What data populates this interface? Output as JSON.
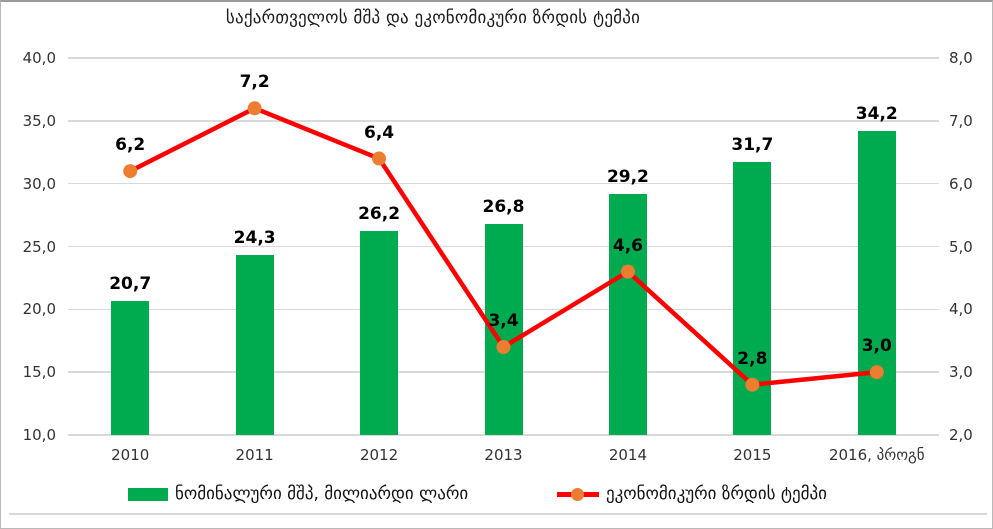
{
  "title": "საქართველოს მშპ და ეკონომიკური ზრდის ტემპი",
  "colors": {
    "bar": "#00AB50",
    "line": "#FF0000",
    "marker": "#ED7D31",
    "grid": "#D9D9D9",
    "axis_text": "#333333",
    "label": "#000000"
  },
  "chart_data": {
    "type": "combo-bar-line",
    "title": "საქართველოს მშპ და ეკონომიკური ზრდის ტემპი",
    "categories": [
      "2010",
      "2011",
      "2012",
      "2013",
      "2014",
      "2015",
      "2016, პროგნ"
    ],
    "series": [
      {
        "name": "ნომინალური მშპ, მილიარდი ლარი",
        "type": "bar",
        "axis": "left",
        "values": [
          20.7,
          24.3,
          26.2,
          26.8,
          29.2,
          31.7,
          34.2
        ],
        "labels": [
          "20,7",
          "24,3",
          "26,2",
          "26,8",
          "29,2",
          "31,7",
          "34,2"
        ],
        "color": "#00AB50"
      },
      {
        "name": "ეკონომიკური ზრდის ტემპი",
        "type": "line",
        "axis": "right",
        "values": [
          6.2,
          7.2,
          6.4,
          3.4,
          4.6,
          2.8,
          3.0
        ],
        "labels": [
          "6,2",
          "7,2",
          "6,4",
          "3,4",
          "4,6",
          "2,8",
          "3,0"
        ],
        "color": "#FF0000",
        "marker_color": "#ED7D31"
      }
    ],
    "left_axis": {
      "min": 10,
      "max": 40,
      "tick_labels": [
        "10,0",
        "15,0",
        "20,0",
        "25,0",
        "30,0",
        "35,0",
        "40,0"
      ]
    },
    "right_axis": {
      "min": 2,
      "max": 8,
      "tick_labels": [
        "2,0",
        "3,0",
        "4,0",
        "5,0",
        "6,0",
        "7,0",
        "8,0"
      ]
    },
    "grid": true,
    "legend_position": "bottom"
  }
}
